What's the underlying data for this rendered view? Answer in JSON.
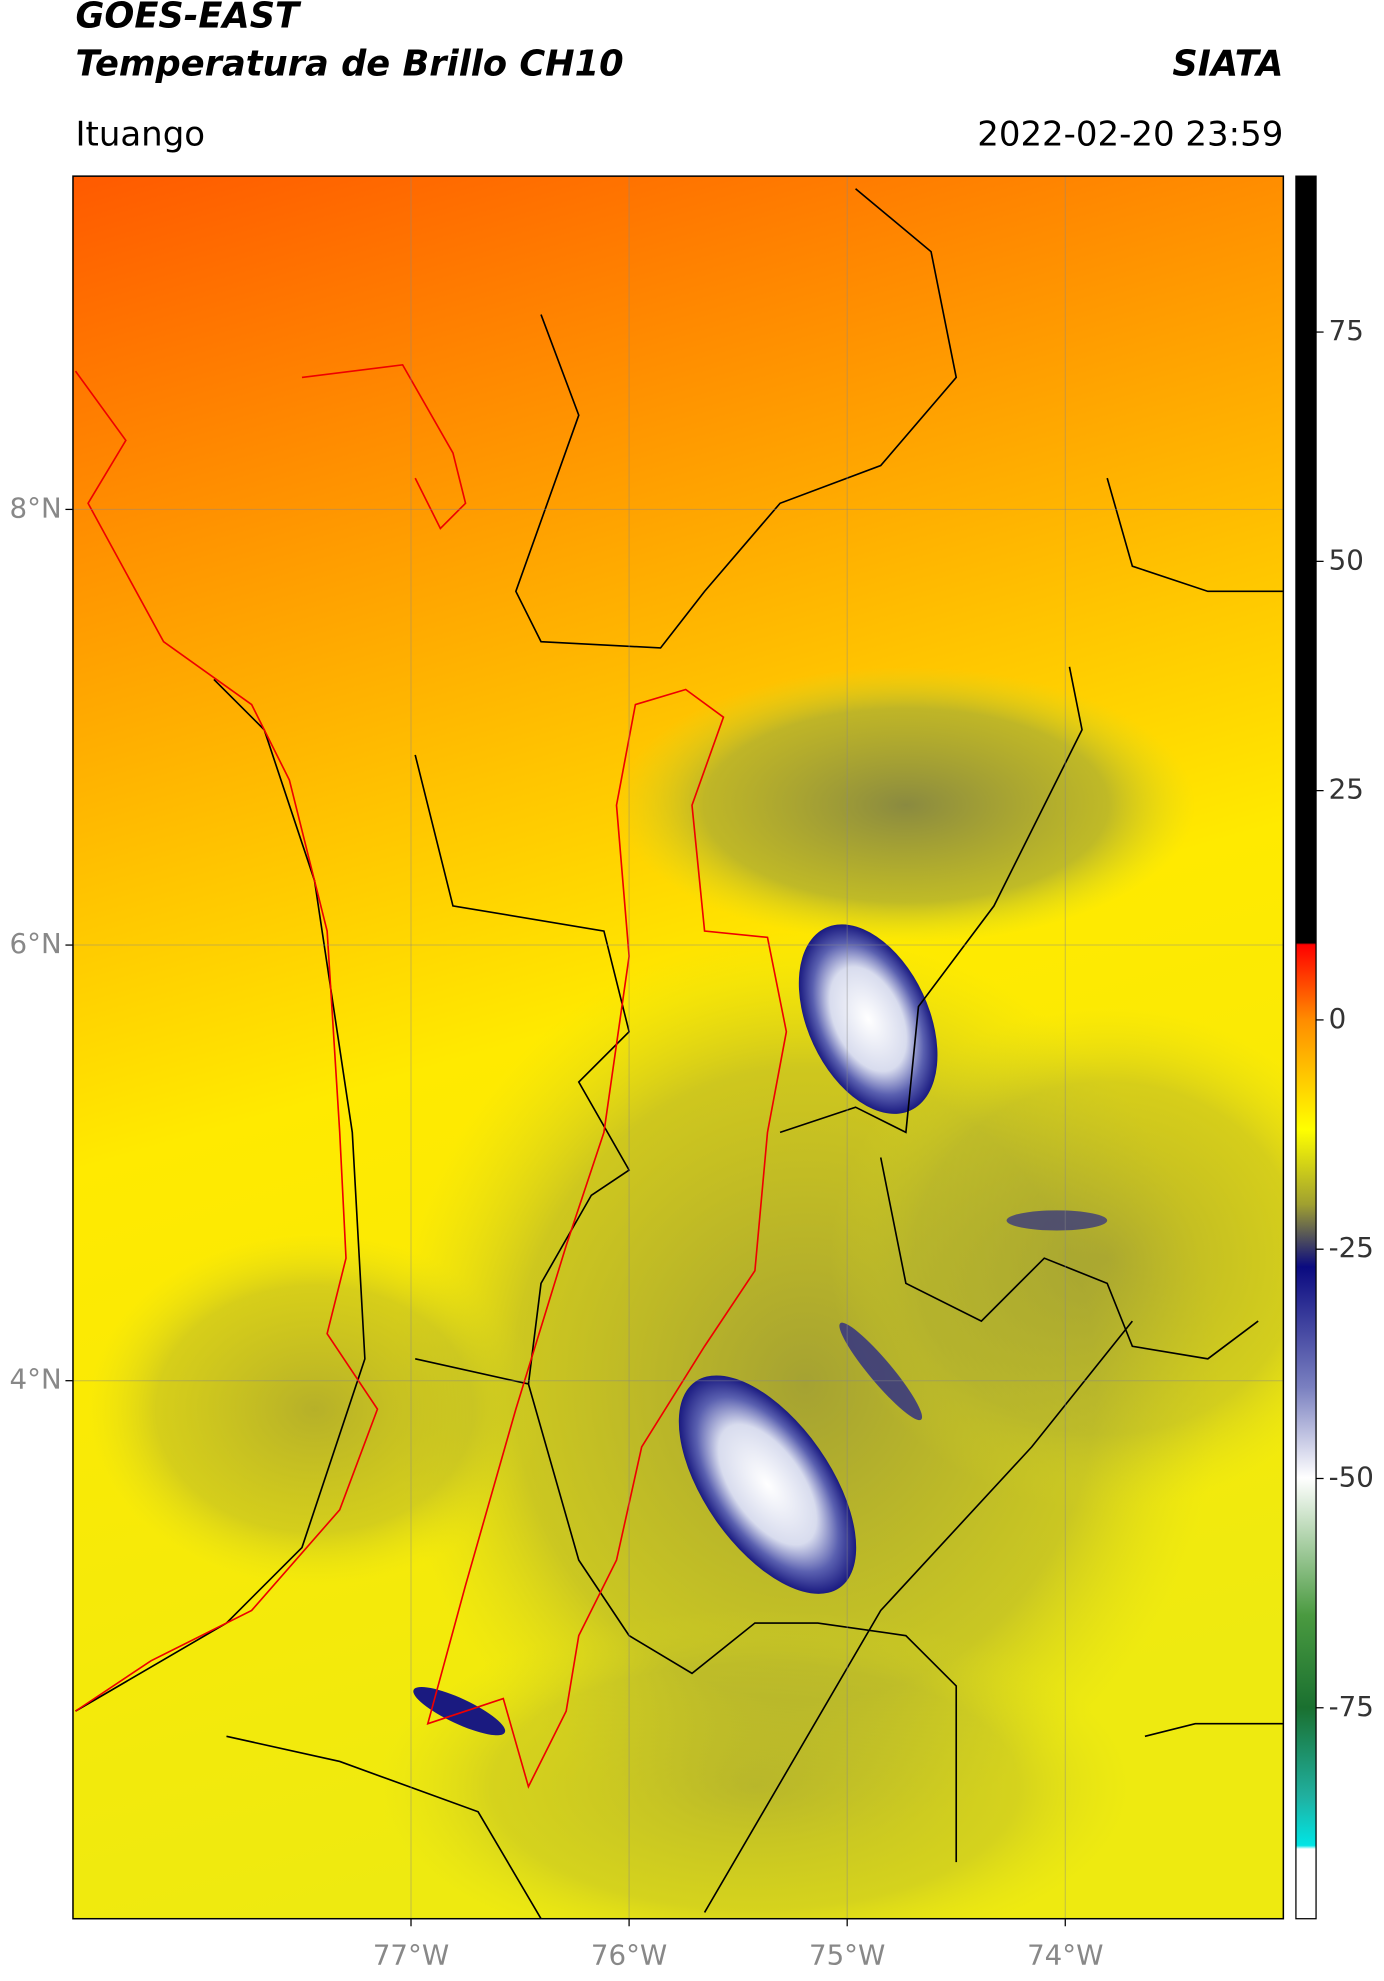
{
  "header": {
    "title": "GOES-EAST",
    "subtitle": "Temperatura de Brillo CH10",
    "source": "SIATA",
    "location": "Ituango",
    "datetime": "2022-02-20 23:59"
  },
  "map": {
    "xlim": [
      -78.55,
      -73.0
    ],
    "ylim": [
      1.53,
      9.53
    ],
    "xticks": [
      {
        "value": -77,
        "label": "77°W"
      },
      {
        "value": -76,
        "label": "76°W"
      },
      {
        "value": -75,
        "label": "75°W"
      },
      {
        "value": -74,
        "label": "74°W"
      }
    ],
    "yticks": [
      {
        "value": 4,
        "label": "4°N"
      },
      {
        "value": 6,
        "label": "6°N"
      },
      {
        "value": 8,
        "label": "8°N"
      }
    ],
    "grid": true
  },
  "colorbar": {
    "clim": [
      -98,
      92
    ],
    "ticks": [
      -75,
      -50,
      -25,
      0,
      25,
      50,
      75
    ]
  }
}
